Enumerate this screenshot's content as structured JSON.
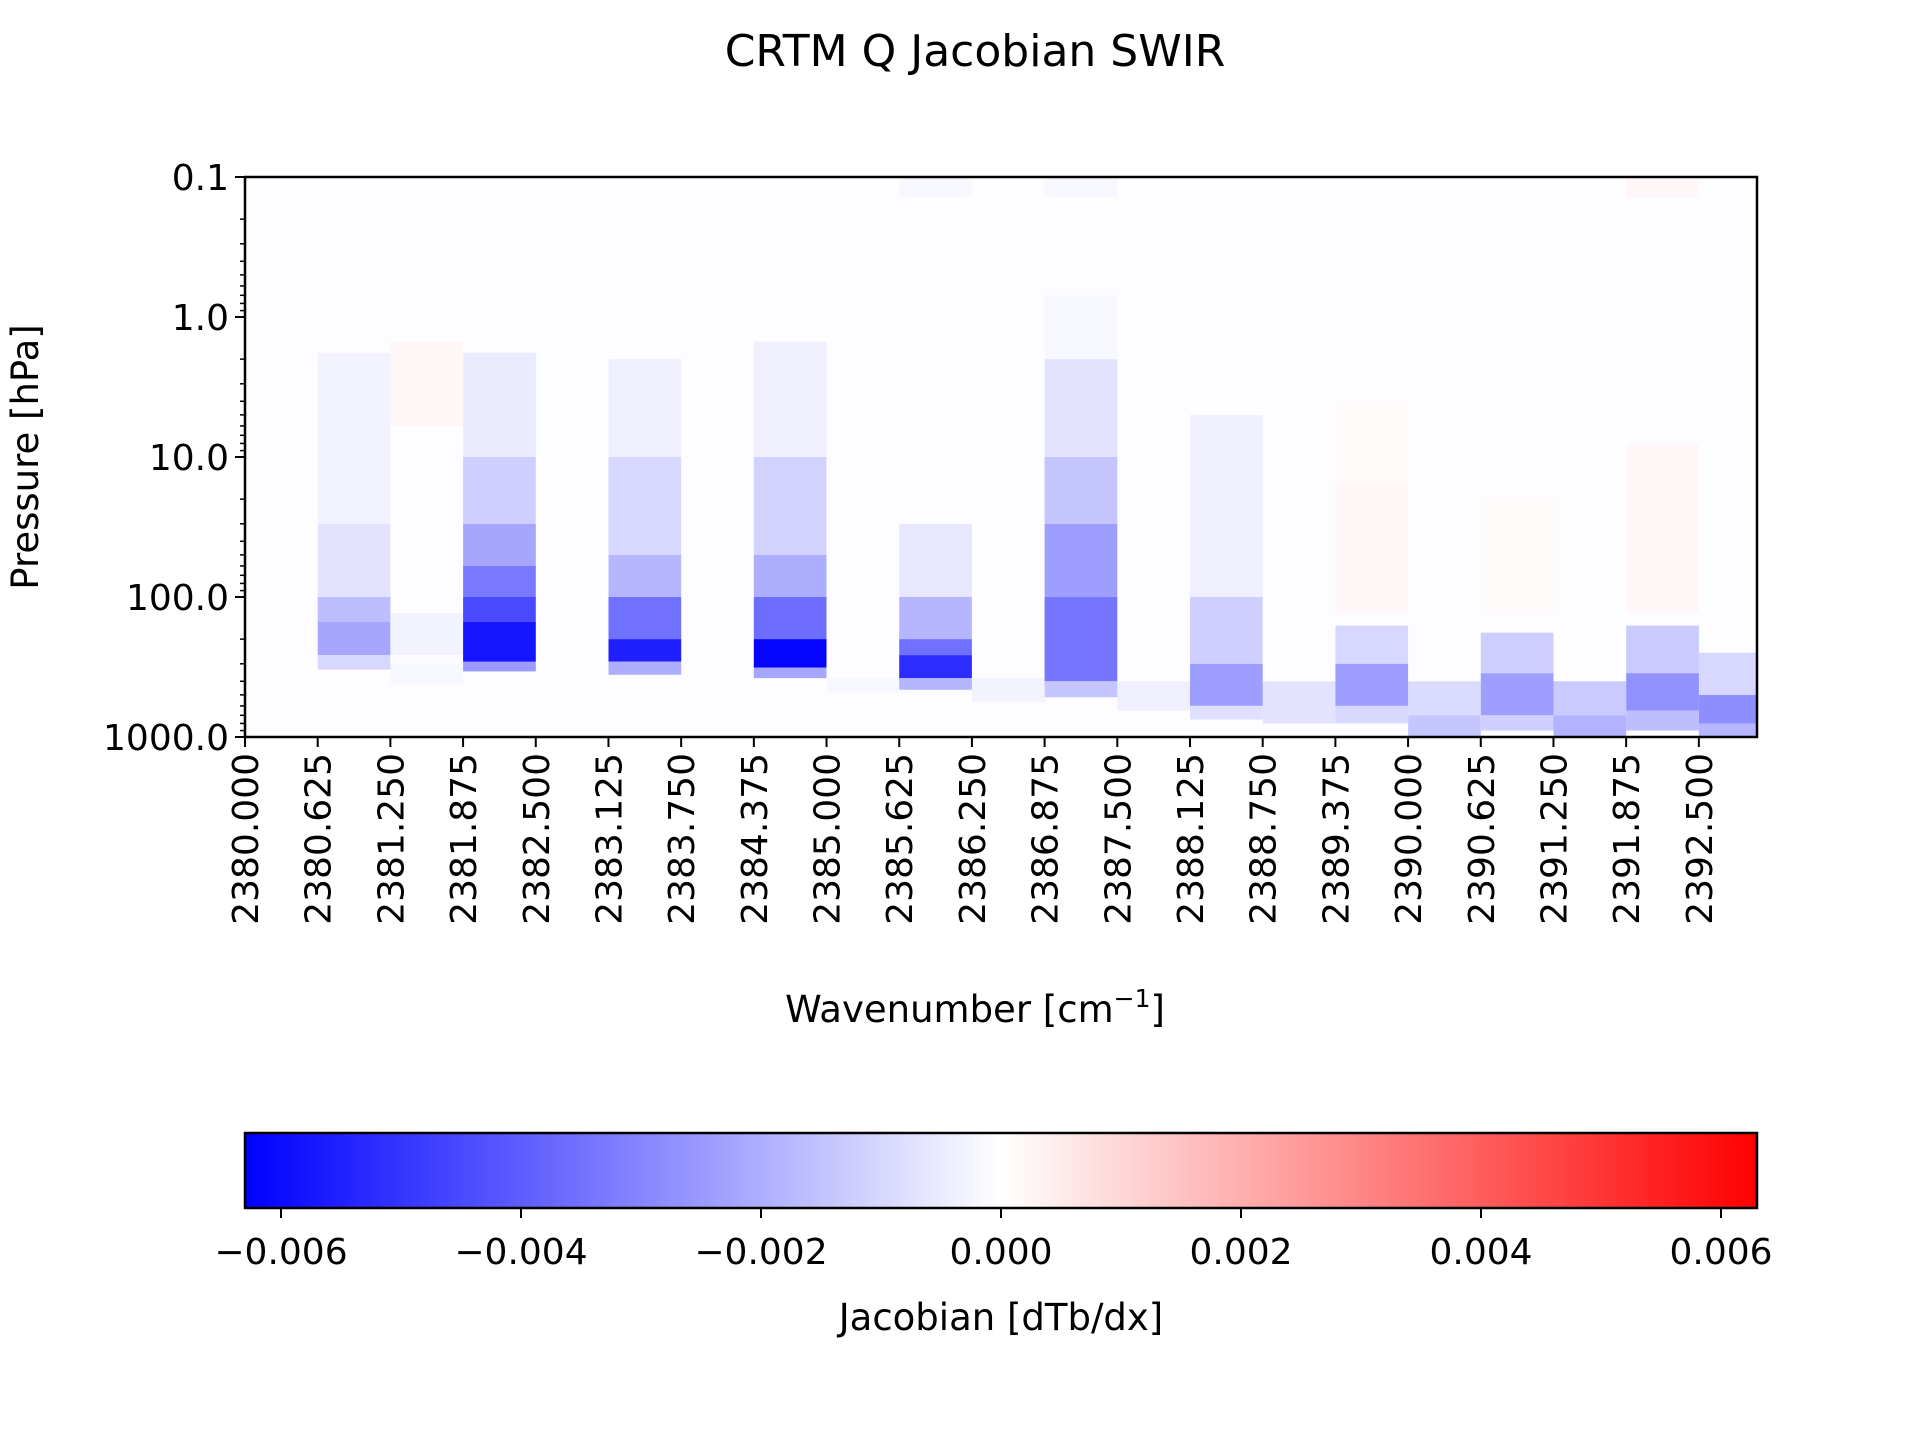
{
  "chart_data": {
    "type": "heatmap",
    "title": "CRTM Q Jacobian SWIR",
    "xlabel_text": "Wavenumber [cm",
    "xlabel_exp": "−1",
    "xlabel_close": "]",
    "ylabel": "Pressure [hPa]",
    "y_scale": "log",
    "ylim": [
      1000,
      0.1
    ],
    "xlim": [
      2380.0,
      2393.0
    ],
    "x_ticks": [
      "2380.000",
      "2380.625",
      "2381.250",
      "2381.875",
      "2382.500",
      "2383.125",
      "2383.750",
      "2384.375",
      "2385.000",
      "2385.625",
      "2386.250",
      "2386.875",
      "2387.500",
      "2388.125",
      "2388.750",
      "2389.375",
      "2390.000",
      "2390.625",
      "2391.250",
      "2391.875",
      "2392.500"
    ],
    "y_ticks": [
      "0.1",
      "1.0",
      "10.0",
      "100.0",
      "1000.0"
    ],
    "colorbar": {
      "label": "Jacobian [dTb/dx]",
      "range": [
        -0.0063,
        0.0063
      ],
      "ticks": [
        "−0.006",
        "−0.004",
        "−0.002",
        "0.000",
        "0.002",
        "0.004",
        "0.006"
      ],
      "tick_values": [
        -0.006,
        -0.004,
        -0.002,
        0.0,
        0.002,
        0.004,
        0.006
      ],
      "colormap": "bwr",
      "low_color": "#0000ff",
      "mid_color": "#ffffff",
      "high_color": "#ff0000"
    },
    "channels": [
      {
        "x_start": 2380.0,
        "x_end": 2380.625,
        "segments": []
      },
      {
        "x_start": 2380.625,
        "x_end": 2381.25,
        "segments": [
          {
            "p_top": 1.8,
            "p_bottom": 30,
            "value": -0.0003
          },
          {
            "p_top": 30,
            "p_bottom": 100,
            "value": -0.0007
          },
          {
            "p_top": 100,
            "p_bottom": 150,
            "value": -0.0016
          },
          {
            "p_top": 150,
            "p_bottom": 260,
            "value": -0.0022
          },
          {
            "p_top": 260,
            "p_bottom": 330,
            "value": -0.001
          }
        ]
      },
      {
        "x_start": 2381.25,
        "x_end": 2381.875,
        "segments": [
          {
            "p_top": 1.5,
            "p_bottom": 6,
            "value": 0.0002
          },
          {
            "p_top": 130,
            "p_bottom": 260,
            "value": -0.0003
          }
        ]
      },
      {
        "x_start": 2381.875,
        "x_end": 2382.5,
        "segments": [
          {
            "p_top": 1.8,
            "p_bottom": 10,
            "value": -0.0005
          },
          {
            "p_top": 10,
            "p_bottom": 30,
            "value": -0.0012
          },
          {
            "p_top": 30,
            "p_bottom": 60,
            "value": -0.0022
          },
          {
            "p_top": 60,
            "p_bottom": 100,
            "value": -0.0033
          },
          {
            "p_top": 100,
            "p_bottom": 150,
            "value": -0.0045
          },
          {
            "p_top": 150,
            "p_bottom": 290,
            "value": -0.0058
          },
          {
            "p_top": 290,
            "p_bottom": 340,
            "value": -0.0025
          }
        ]
      },
      {
        "x_start": 2383.125,
        "x_end": 2383.75,
        "segments": [
          {
            "p_top": 2,
            "p_bottom": 10,
            "value": -0.0004
          },
          {
            "p_top": 10,
            "p_bottom": 50,
            "value": -0.001
          },
          {
            "p_top": 50,
            "p_bottom": 100,
            "value": -0.0018
          },
          {
            "p_top": 100,
            "p_bottom": 200,
            "value": -0.0035
          },
          {
            "p_top": 200,
            "p_bottom": 290,
            "value": -0.0055
          },
          {
            "p_top": 290,
            "p_bottom": 360,
            "value": -0.002
          }
        ]
      },
      {
        "x_start": 2384.375,
        "x_end": 2385.0,
        "segments": [
          {
            "p_top": 1.5,
            "p_bottom": 10,
            "value": -0.0004
          },
          {
            "p_top": 10,
            "p_bottom": 50,
            "value": -0.0011
          },
          {
            "p_top": 50,
            "p_bottom": 100,
            "value": -0.002
          },
          {
            "p_top": 100,
            "p_bottom": 200,
            "value": -0.0036
          },
          {
            "p_top": 200,
            "p_bottom": 320,
            "value": -0.0062
          },
          {
            "p_top": 320,
            "p_bottom": 380,
            "value": -0.0022
          }
        ]
      },
      {
        "x_start": 2385.625,
        "x_end": 2386.25,
        "segments": [
          {
            "p_top": 0.08,
            "p_bottom": 0.14,
            "value": -0.0002
          },
          {
            "p_top": 30,
            "p_bottom": 100,
            "value": -0.0006
          },
          {
            "p_top": 100,
            "p_bottom": 200,
            "value": -0.0018
          },
          {
            "p_top": 200,
            "p_bottom": 260,
            "value": -0.0035
          },
          {
            "p_top": 260,
            "p_bottom": 380,
            "value": -0.0052
          },
          {
            "p_top": 380,
            "p_bottom": 460,
            "value": -0.0018
          }
        ]
      },
      {
        "x_start": 2386.875,
        "x_end": 2387.5,
        "segments": [
          {
            "p_top": 0.08,
            "p_bottom": 0.14,
            "value": -0.0002
          },
          {
            "p_top": 0.7,
            "p_bottom": 2,
            "value": -0.0002
          },
          {
            "p_top": 2,
            "p_bottom": 10,
            "value": -0.0007
          },
          {
            "p_top": 10,
            "p_bottom": 30,
            "value": -0.0014
          },
          {
            "p_top": 30,
            "p_bottom": 100,
            "value": -0.0024
          },
          {
            "p_top": 100,
            "p_bottom": 400,
            "value": -0.0034
          },
          {
            "p_top": 400,
            "p_bottom": 520,
            "value": -0.0014
          }
        ]
      },
      {
        "x_start": 2388.125,
        "x_end": 2388.75,
        "segments": [
          {
            "p_top": 5,
            "p_bottom": 100,
            "value": -0.0004
          },
          {
            "p_top": 100,
            "p_bottom": 300,
            "value": -0.0012
          },
          {
            "p_top": 300,
            "p_bottom": 600,
            "value": -0.0024
          },
          {
            "p_top": 600,
            "p_bottom": 750,
            "value": -0.0008
          }
        ]
      },
      {
        "x_start": 2389.375,
        "x_end": 2390.0,
        "segments": [
          {
            "p_top": 4,
            "p_bottom": 15,
            "value": 0.0001
          },
          {
            "p_top": 15,
            "p_bottom": 130,
            "value": 0.0002
          },
          {
            "p_top": 160,
            "p_bottom": 300,
            "value": -0.001
          },
          {
            "p_top": 300,
            "p_bottom": 600,
            "value": -0.0024
          },
          {
            "p_top": 600,
            "p_bottom": 800,
            "value": -0.001
          }
        ]
      },
      {
        "x_start": 2390.625,
        "x_end": 2391.25,
        "segments": [
          {
            "p_top": 20,
            "p_bottom": 130,
            "value": 0.0001
          },
          {
            "p_top": 180,
            "p_bottom": 350,
            "value": -0.0012
          },
          {
            "p_top": 350,
            "p_bottom": 700,
            "value": -0.0024
          },
          {
            "p_top": 700,
            "p_bottom": 900,
            "value": -0.0012
          }
        ]
      },
      {
        "x_start": 2391.875,
        "x_end": 2392.5,
        "segments": [
          {
            "p_top": 0.08,
            "p_bottom": 0.14,
            "value": 0.0002
          },
          {
            "p_top": 8,
            "p_bottom": 130,
            "value": 0.0002
          },
          {
            "p_top": 160,
            "p_bottom": 350,
            "value": -0.0013
          },
          {
            "p_top": 350,
            "p_bottom": 650,
            "value": -0.0027
          },
          {
            "p_top": 650,
            "p_bottom": 900,
            "value": -0.0016
          }
        ]
      }
    ],
    "between_channels": [
      {
        "x_start": 2381.25,
        "x_end": 2381.875,
        "segments": [
          {
            "p_top": 300,
            "p_bottom": 420,
            "value": -0.0002
          }
        ]
      },
      {
        "x_start": 2385.0,
        "x_end": 2385.625,
        "segments": [
          {
            "p_top": 380,
            "p_bottom": 480,
            "value": -0.0002
          }
        ]
      },
      {
        "x_start": 2386.25,
        "x_end": 2386.875,
        "segments": [
          {
            "p_top": 380,
            "p_bottom": 560,
            "value": -0.0003
          }
        ]
      },
      {
        "x_start": 2387.5,
        "x_end": 2388.125,
        "segments": [
          {
            "p_top": 400,
            "p_bottom": 650,
            "value": -0.0004
          }
        ]
      },
      {
        "x_start": 2388.75,
        "x_end": 2389.375,
        "segments": [
          {
            "p_top": 400,
            "p_bottom": 800,
            "value": -0.0007
          }
        ]
      },
      {
        "x_start": 2390.0,
        "x_end": 2390.625,
        "segments": [
          {
            "p_top": 400,
            "p_bottom": 700,
            "value": -0.0009
          },
          {
            "p_top": 700,
            "p_bottom": 1000,
            "value": -0.0014
          }
        ]
      },
      {
        "x_start": 2391.25,
        "x_end": 2391.875,
        "segments": [
          {
            "p_top": 400,
            "p_bottom": 700,
            "value": -0.0013
          },
          {
            "p_top": 700,
            "p_bottom": 1000,
            "value": -0.0019
          }
        ]
      },
      {
        "x_start": 2392.5,
        "x_end": 2393.0,
        "segments": [
          {
            "p_top": 250,
            "p_bottom": 500,
            "value": -0.001
          },
          {
            "p_top": 500,
            "p_bottom": 800,
            "value": -0.0028
          },
          {
            "p_top": 800,
            "p_bottom": 1000,
            "value": -0.0018
          }
        ]
      }
    ]
  }
}
